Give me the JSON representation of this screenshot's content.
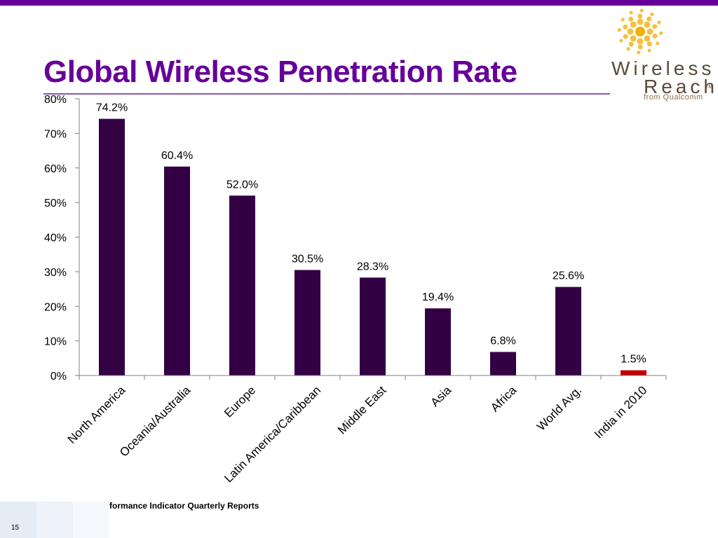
{
  "slide": {
    "title": "Global Wireless Penetration Rate",
    "source": "Source : TRAI Performance Indicator Quarterly Reports",
    "page_number": "15"
  },
  "logo": {
    "word1": "Wireless",
    "word2": "Reach",
    "tm": "TM",
    "subtitle": "from Qualcomm"
  },
  "colors": {
    "accent": "#660099",
    "bar": "#330044",
    "highlight_bar": "#c00000"
  },
  "chart_data": {
    "type": "bar",
    "categories": [
      "North America",
      "Oceania/Australia",
      "Europe",
      "Latin America/Caribbean",
      "Middle East",
      "Asia",
      "Africa",
      "World Avg.",
      "India in 2010"
    ],
    "values": [
      74.2,
      60.4,
      52.0,
      30.5,
      28.3,
      19.4,
      6.8,
      25.6,
      1.5
    ],
    "data_labels": [
      "74.2%",
      "60.4%",
      "52.0%",
      "30.5%",
      "28.3%",
      "19.4%",
      "6.8%",
      "25.6%",
      "1.5%"
    ],
    "highlight_index": 8,
    "ylim": [
      0,
      80
    ],
    "yticks": [
      "0%",
      "10%",
      "20%",
      "30%",
      "40%",
      "50%",
      "60%",
      "70%",
      "80%"
    ],
    "grid": false,
    "legend": "none"
  }
}
